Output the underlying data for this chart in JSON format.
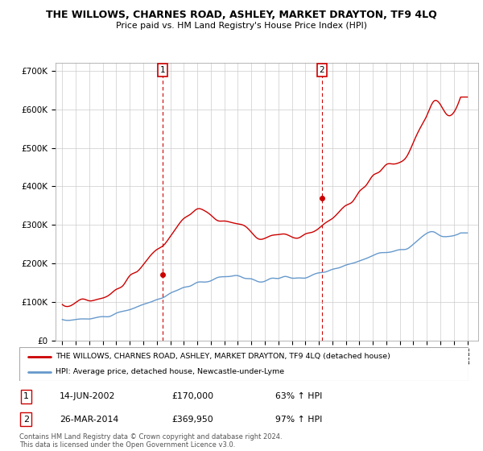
{
  "title": "THE WILLOWS, CHARNES ROAD, ASHLEY, MARKET DRAYTON, TF9 4LQ",
  "subtitle": "Price paid vs. HM Land Registry's House Price Index (HPI)",
  "ylabel_ticks": [
    "£0",
    "£100K",
    "£200K",
    "£300K",
    "£400K",
    "£500K",
    "£600K",
    "£700K"
  ],
  "ytick_vals": [
    0,
    100000,
    200000,
    300000,
    400000,
    500000,
    600000,
    700000
  ],
  "ylim": [
    0,
    720000
  ],
  "xlim_start": 1994.5,
  "xlim_end": 2025.8,
  "legend_line1": "THE WILLOWS, CHARNES ROAD, ASHLEY, MARKET DRAYTON, TF9 4LQ (detached house)",
  "legend_line2": "HPI: Average price, detached house, Newcastle-under-Lyme",
  "sale1_x": 2002.45,
  "sale1_y": 170000,
  "sale2_x": 2014.23,
  "sale2_y": 369950,
  "table_row1": [
    "1",
    "14-JUN-2002",
    "£170,000",
    "63% ↑ HPI"
  ],
  "table_row2": [
    "2",
    "26-MAR-2014",
    "£369,950",
    "97% ↑ HPI"
  ],
  "copyright_text": "Contains HM Land Registry data © Crown copyright and database right 2024.\nThis data is licensed under the Open Government Licence v3.0.",
  "line_color_red": "#cc0000",
  "line_color_blue": "#6699cc",
  "annotation_box_color": "#cc0000",
  "background_color": "#ffffff",
  "grid_color": "#cccccc",
  "hpi_years": [
    1995.0,
    1995.5,
    1996.0,
    1996.5,
    1997.0,
    1997.5,
    1998.0,
    1998.5,
    1999.0,
    1999.5,
    2000.0,
    2000.5,
    2001.0,
    2001.5,
    2002.0,
    2002.5,
    2003.0,
    2003.5,
    2004.0,
    2004.5,
    2005.0,
    2005.5,
    2006.0,
    2006.5,
    2007.0,
    2007.5,
    2008.0,
    2008.5,
    2009.0,
    2009.5,
    2010.0,
    2010.5,
    2011.0,
    2011.5,
    2012.0,
    2012.5,
    2013.0,
    2013.5,
    2014.0,
    2014.5,
    2015.0,
    2015.5,
    2016.0,
    2016.5,
    2017.0,
    2017.5,
    2018.0,
    2018.5,
    2019.0,
    2019.5,
    2020.0,
    2020.5,
    2021.0,
    2021.5,
    2022.0,
    2022.5,
    2023.0,
    2023.5,
    2024.0,
    2024.5
  ],
  "hpi_vals": [
    52000,
    54000,
    55000,
    56000,
    58000,
    61000,
    63000,
    67000,
    72000,
    78000,
    84000,
    90000,
    96000,
    103000,
    110000,
    118000,
    126000,
    134000,
    141000,
    147000,
    150000,
    153000,
    158000,
    163000,
    168000,
    170000,
    168000,
    162000,
    155000,
    152000,
    158000,
    162000,
    165000,
    166000,
    164000,
    163000,
    165000,
    170000,
    176000,
    181000,
    186000,
    192000,
    198000,
    205000,
    213000,
    218000,
    222000,
    226000,
    230000,
    234000,
    232000,
    242000,
    258000,
    272000,
    285000,
    280000,
    268000,
    270000,
    275000,
    280000
  ],
  "prop_years": [
    1995.0,
    1995.5,
    1996.0,
    1996.5,
    1997.0,
    1997.5,
    1998.0,
    1998.5,
    1999.0,
    1999.5,
    2000.0,
    2000.5,
    2001.0,
    2001.5,
    2002.0,
    2002.5,
    2003.0,
    2003.5,
    2004.0,
    2004.5,
    2005.0,
    2005.5,
    2006.0,
    2006.5,
    2007.0,
    2007.5,
    2008.0,
    2008.5,
    2009.0,
    2009.5,
    2010.0,
    2010.5,
    2011.0,
    2011.5,
    2012.0,
    2012.5,
    2013.0,
    2013.5,
    2014.0,
    2014.5,
    2015.0,
    2015.5,
    2016.0,
    2016.5,
    2017.0,
    2017.5,
    2018.0,
    2018.5,
    2019.0,
    2019.5,
    2020.0,
    2020.5,
    2021.0,
    2021.5,
    2022.0,
    2022.5,
    2023.0,
    2023.5,
    2024.0,
    2024.5
  ],
  "prop_vals": [
    95000,
    98000,
    100000,
    102000,
    107000,
    112000,
    118000,
    128000,
    140000,
    155000,
    170000,
    188000,
    205000,
    222000,
    238000,
    258000,
    280000,
    305000,
    330000,
    340000,
    338000,
    330000,
    318000,
    312000,
    310000,
    308000,
    300000,
    285000,
    265000,
    258000,
    268000,
    272000,
    278000,
    275000,
    268000,
    265000,
    270000,
    285000,
    300000,
    315000,
    325000,
    340000,
    358000,
    375000,
    395000,
    415000,
    430000,
    445000,
    455000,
    465000,
    462000,
    490000,
    530000,
    568000,
    610000,
    630000,
    595000,
    580000,
    610000,
    640000
  ]
}
